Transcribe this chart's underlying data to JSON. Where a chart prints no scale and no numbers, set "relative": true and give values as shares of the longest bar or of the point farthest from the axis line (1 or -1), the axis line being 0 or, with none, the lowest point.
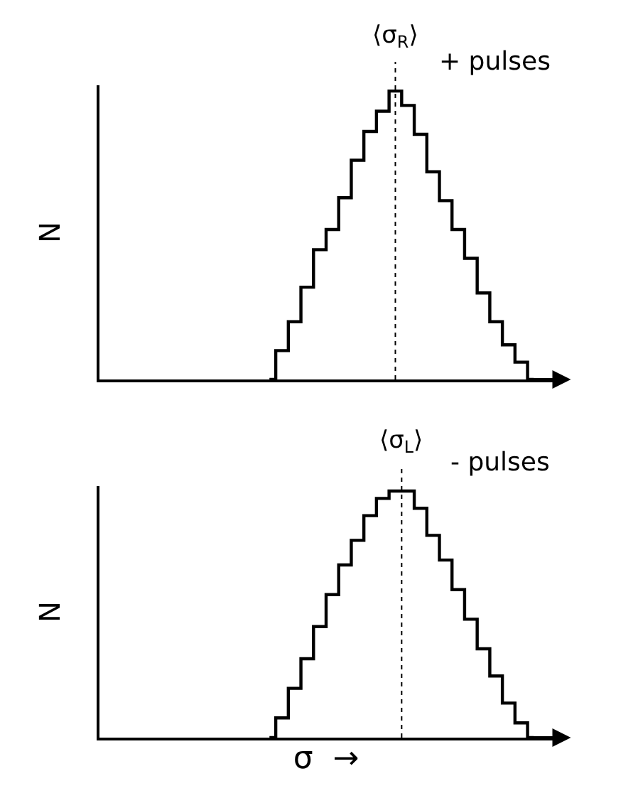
{
  "chart_data": [
    {
      "type": "step",
      "relative": true,
      "ylabel": "N",
      "tick_labels": false,
      "grid": false,
      "color": "#000000",
      "categories": [
        null,
        null,
        null,
        null,
        null,
        null,
        null,
        null,
        null,
        null,
        null,
        null,
        null,
        null,
        null,
        null,
        null,
        null,
        null,
        null,
        null,
        null,
        null,
        null,
        null,
        null,
        null,
        null,
        null,
        null,
        null,
        null,
        null,
        null,
        null,
        null
      ],
      "values": [
        null,
        null,
        null,
        null,
        null,
        null,
        null,
        null,
        null,
        null,
        null,
        null,
        null,
        0,
        0.1,
        0.2,
        0.32,
        0.45,
        0.52,
        0.63,
        0.76,
        0.86,
        0.93,
        1.0,
        0.95,
        0.85,
        0.72,
        0.62,
        0.52,
        0.42,
        0.3,
        0.2,
        0.12,
        0.06,
        0,
        null
      ],
      "annotations": [
        "⟨σ$_{R}$⟩",
        "+ pulses"
      ]
    },
    {
      "type": "step",
      "relative": true,
      "ylabel": "N",
      "xlabel": "σ  →",
      "tick_labels": false,
      "grid": false,
      "color": "#000000",
      "categories": [
        null,
        null,
        null,
        null,
        null,
        null,
        null,
        null,
        null,
        null,
        null,
        null,
        null,
        null,
        null,
        null,
        null,
        null,
        null,
        null,
        null,
        null,
        null,
        null,
        null,
        null,
        null,
        null,
        null,
        null,
        null,
        null,
        null,
        null,
        null,
        null
      ],
      "values": [
        null,
        null,
        null,
        null,
        null,
        null,
        null,
        null,
        null,
        null,
        null,
        null,
        null,
        0,
        0.08,
        0.2,
        0.32,
        0.45,
        0.58,
        0.7,
        0.8,
        0.9,
        0.97,
        1.0,
        1.0,
        0.93,
        0.82,
        0.72,
        0.6,
        0.48,
        0.36,
        0.25,
        0.14,
        0.06,
        0,
        null
      ],
      "annotations": [
        "⟨σ$_{L}$⟩",
        "- pulses"
      ]
    }
  ]
}
